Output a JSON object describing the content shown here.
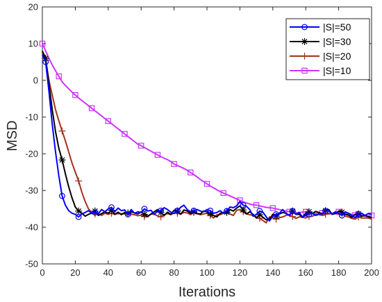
{
  "chart_data": {
    "type": "line",
    "title": "",
    "xlabel": "Iterations",
    "ylabel": "MSD",
    "xlim": [
      0,
      200
    ],
    "ylim": [
      -50,
      20
    ],
    "xticks": [
      0,
      20,
      40,
      60,
      80,
      100,
      120,
      140,
      160,
      180,
      200
    ],
    "yticks": [
      20,
      10,
      0,
      -10,
      -20,
      -30,
      -40,
      -50
    ],
    "grid": false,
    "legend_position": "top-right",
    "series": [
      {
        "name": "|S|=50",
        "color": "#0000ff",
        "marker": "circle",
        "x": [
          0,
          2,
          4,
          6,
          8,
          10,
          12,
          14,
          16,
          18,
          20,
          22,
          24,
          26,
          28,
          30,
          32,
          34,
          36,
          38,
          40,
          42,
          44,
          46,
          48,
          50,
          52,
          54,
          56,
          58,
          60,
          62,
          64,
          66,
          68,
          70,
          72,
          74,
          76,
          78,
          80,
          82,
          84,
          86,
          88,
          90,
          92,
          94,
          96,
          98,
          100,
          102,
          104,
          106,
          108,
          110,
          112,
          114,
          116,
          118,
          120,
          122,
          124,
          126,
          128,
          130,
          132,
          134,
          136,
          138,
          140,
          142,
          144,
          146,
          148,
          150,
          152,
          154,
          156,
          158,
          160,
          162,
          164,
          166,
          168,
          170,
          172,
          174,
          176,
          178,
          180,
          182,
          184,
          186,
          188,
          190,
          192,
          194,
          196,
          198,
          200
        ],
        "y": [
          7,
          5,
          -3,
          -12,
          -19.5,
          -26,
          -31.5,
          -34,
          -35.5,
          -36.2,
          -36.5,
          -37.2,
          -36.4,
          -36,
          -35.5,
          -36.2,
          -36,
          -36.3,
          -35.2,
          -35.8,
          -35,
          -34.6,
          -35.8,
          -34.8,
          -35.5,
          -35.3,
          -36.5,
          -35.2,
          -36.2,
          -35.8,
          -36,
          -35,
          -35.6,
          -35.4,
          -36.5,
          -35.6,
          -35.5,
          -34.7,
          -35.2,
          -35.9,
          -36.3,
          -35.5,
          -34.6,
          -34,
          -35.2,
          -35.8,
          -35.5,
          -35.2,
          -35.6,
          -35.8,
          -35.2,
          -35.5,
          -36.2,
          -36,
          -35.5,
          -36.2,
          -35.6,
          -34.5,
          -34.7,
          -34.2,
          -33,
          -34,
          -34.3,
          -35.2,
          -37,
          -36.5,
          -35.6,
          -35.9,
          -37.2,
          -38.3,
          -37,
          -36.5,
          -36.2,
          -35.2,
          -36.3,
          -36.8,
          -35.6,
          -36.5,
          -36,
          -37.2,
          -36.8,
          -36.5,
          -36.2,
          -36.8,
          -36.5,
          -36.3,
          -35.6,
          -35.5,
          -36.5,
          -35.8,
          -36.2,
          -36.8,
          -35.8,
          -36.2,
          -36.8,
          -37.4,
          -36.4,
          -36.2,
          -36.8,
          -36.3,
          -36.5
        ]
      },
      {
        "name": "|S|=30",
        "color": "#000000",
        "marker": "asterisk",
        "x": [
          0,
          2,
          4,
          6,
          8,
          10,
          12,
          14,
          16,
          18,
          20,
          22,
          24,
          26,
          28,
          30,
          32,
          34,
          36,
          38,
          40,
          42,
          44,
          46,
          48,
          50,
          52,
          54,
          56,
          58,
          60,
          62,
          64,
          66,
          68,
          70,
          72,
          74,
          76,
          78,
          80,
          82,
          84,
          86,
          88,
          90,
          92,
          94,
          96,
          98,
          100,
          102,
          104,
          106,
          108,
          110,
          112,
          114,
          116,
          118,
          120,
          122,
          124,
          126,
          128,
          130,
          132,
          134,
          136,
          138,
          140,
          142,
          144,
          146,
          148,
          150,
          152,
          154,
          156,
          158,
          160,
          162,
          164,
          166,
          168,
          170,
          172,
          174,
          176,
          178,
          180,
          182,
          184,
          186,
          188,
          190,
          192,
          194,
          196,
          198,
          200
        ],
        "y": [
          8,
          6,
          -1,
          -8,
          -14,
          -18.5,
          -21.7,
          -25.5,
          -29,
          -32,
          -34.5,
          -35.6,
          -36.2,
          -37,
          -36.5,
          -36.2,
          -35.6,
          -36.8,
          -36.3,
          -35.8,
          -36.2,
          -35.4,
          -36.5,
          -35.9,
          -36.6,
          -36,
          -36.3,
          -35.8,
          -36.1,
          -36.4,
          -35.8,
          -36.5,
          -37,
          -36.4,
          -35.8,
          -35.2,
          -36,
          -36.8,
          -35.9,
          -36.5,
          -35.4,
          -35.6,
          -36.5,
          -35.3,
          -35.6,
          -36.2,
          -35.8,
          -36.3,
          -36.4,
          -35.6,
          -35.8,
          -36.3,
          -36.8,
          -37.2,
          -36.2,
          -36,
          -35.9,
          -35.2,
          -35.6,
          -34.8,
          -34.2,
          -35.3,
          -36.4,
          -35.8,
          -36.5,
          -37.5,
          -36.6,
          -37.3,
          -38,
          -37.8,
          -36.5,
          -37,
          -36.4,
          -36,
          -36.2,
          -36.8,
          -35.6,
          -36.5,
          -36.5,
          -37.3,
          -36.2,
          -35.8,
          -36.3,
          -35.7,
          -36,
          -36.4,
          -35.5,
          -35.2,
          -36.5,
          -36.3,
          -35.6,
          -35.9,
          -36.5,
          -36.7,
          -37.3,
          -36.5,
          -36.4,
          -37,
          -36.8,
          -37.1,
          -37.4
        ]
      },
      {
        "name": "|S|=20",
        "color": "#a0321e",
        "marker": "plus",
        "x": [
          0,
          2,
          4,
          6,
          8,
          10,
          12,
          14,
          16,
          18,
          20,
          22,
          24,
          26,
          28,
          30,
          32,
          34,
          36,
          38,
          40,
          42,
          44,
          46,
          48,
          50,
          52,
          54,
          56,
          58,
          60,
          62,
          64,
          66,
          68,
          70,
          72,
          74,
          76,
          78,
          80,
          82,
          84,
          86,
          88,
          90,
          92,
          94,
          96,
          98,
          100,
          102,
          104,
          106,
          108,
          110,
          112,
          114,
          116,
          118,
          120,
          122,
          124,
          126,
          128,
          130,
          132,
          134,
          136,
          138,
          140,
          142,
          144,
          146,
          148,
          150,
          152,
          154,
          156,
          158,
          160,
          162,
          164,
          166,
          168,
          170,
          172,
          174,
          176,
          178,
          180,
          182,
          184,
          186,
          188,
          190,
          192,
          194,
          196,
          198,
          200
        ],
        "y": [
          8,
          5.5,
          0,
          -4,
          -8,
          -11,
          -13.8,
          -16.5,
          -19.5,
          -22.5,
          -25,
          -27.4,
          -30.5,
          -33,
          -35,
          -36,
          -36.4,
          -36.3,
          -36.8,
          -36.2,
          -36.5,
          -36.2,
          -36.5,
          -36.3,
          -36.3,
          -36.4,
          -36.1,
          -36.5,
          -36.6,
          -36.9,
          -36.7,
          -37.1,
          -37.2,
          -36.4,
          -36.5,
          -36.9,
          -37.2,
          -36.6,
          -36.3,
          -36.6,
          -36.1,
          -36.2,
          -36.4,
          -36,
          -36.1,
          -36.6,
          -36,
          -36.3,
          -36.6,
          -36.4,
          -36.2,
          -36.8,
          -37.5,
          -36.6,
          -36.6,
          -36.2,
          -36,
          -36.4,
          -36.8,
          -35.4,
          -35.2,
          -35.8,
          -36.4,
          -36.6,
          -36.8,
          -37.2,
          -37.6,
          -38.2,
          -38.8,
          -37.2,
          -37.4,
          -37.8,
          -37.4,
          -37.2,
          -36.8,
          -36.6,
          -37.1,
          -37.6,
          -37.2,
          -37.3,
          -37.5,
          -37.1,
          -37,
          -36.6,
          -36.4,
          -36.8,
          -36.5,
          -36.2,
          -36.4,
          -36.2,
          -36.5,
          -36.3,
          -37,
          -37.2,
          -37.6,
          -37.8,
          -37.2,
          -37.5,
          -37.5,
          -37.5,
          -37.8
        ]
      },
      {
        "name": "|S|=10",
        "color": "#cc33ff",
        "marker": "square",
        "x": [
          0,
          2,
          4,
          6,
          8,
          10,
          12,
          14,
          16,
          18,
          20,
          22,
          24,
          26,
          28,
          30,
          32,
          34,
          36,
          38,
          40,
          42,
          44,
          46,
          48,
          50,
          52,
          54,
          56,
          58,
          60,
          62,
          64,
          66,
          68,
          70,
          72,
          74,
          76,
          78,
          80,
          82,
          84,
          86,
          88,
          90,
          92,
          94,
          96,
          98,
          100,
          102,
          104,
          106,
          108,
          110,
          112,
          114,
          116,
          118,
          120,
          122,
          124,
          126,
          128,
          130,
          132,
          134,
          136,
          138,
          140,
          142,
          144,
          146,
          148,
          150,
          152,
          154,
          156,
          158,
          160,
          162,
          164,
          166,
          168,
          170,
          172,
          174,
          176,
          178,
          180,
          182,
          184,
          186,
          188,
          190,
          192,
          194,
          196,
          198,
          200
        ],
        "y": [
          10,
          8,
          6,
          4.2,
          2.6,
          1.1,
          -0.4,
          -1.4,
          -2.3,
          -3.2,
          -4.0,
          -4.8,
          -5.5,
          -6.2,
          -6.9,
          -7.6,
          -8.3,
          -9.0,
          -9.7,
          -10.4,
          -11.1,
          -11.8,
          -12.5,
          -13.2,
          -13.9,
          -14.6,
          -15.3,
          -16,
          -16.7,
          -17.4,
          -17.8,
          -18.3,
          -18.8,
          -19.3,
          -19.8,
          -20.3,
          -20.8,
          -21.2,
          -21.6,
          -22.1,
          -22.8,
          -23.2,
          -23.6,
          -24,
          -24.5,
          -25.1,
          -25.7,
          -26.3,
          -27,
          -27.6,
          -28.2,
          -28.8,
          -29.3,
          -29.8,
          -30.3,
          -30.7,
          -31.1,
          -31.5,
          -31.9,
          -32.3,
          -32.7,
          -33.1,
          -33.4,
          -33.7,
          -33.9,
          -34,
          -34.2,
          -34.4,
          -34.6,
          -34.7,
          -34.8,
          -35,
          -35.2,
          -35.4,
          -35.6,
          -35.8,
          -36,
          -36.1,
          -36,
          -35.9,
          -35.8,
          -35.9,
          -36.2,
          -36.3,
          -36.2,
          -36.1,
          -36.3,
          -36.4,
          -36.2,
          -36,
          -35.8,
          -35.9,
          -36.1,
          -36.3,
          -36.5,
          -36.7,
          -36.6,
          -36.8,
          -37,
          -37.2,
          -36.8
        ]
      }
    ]
  }
}
